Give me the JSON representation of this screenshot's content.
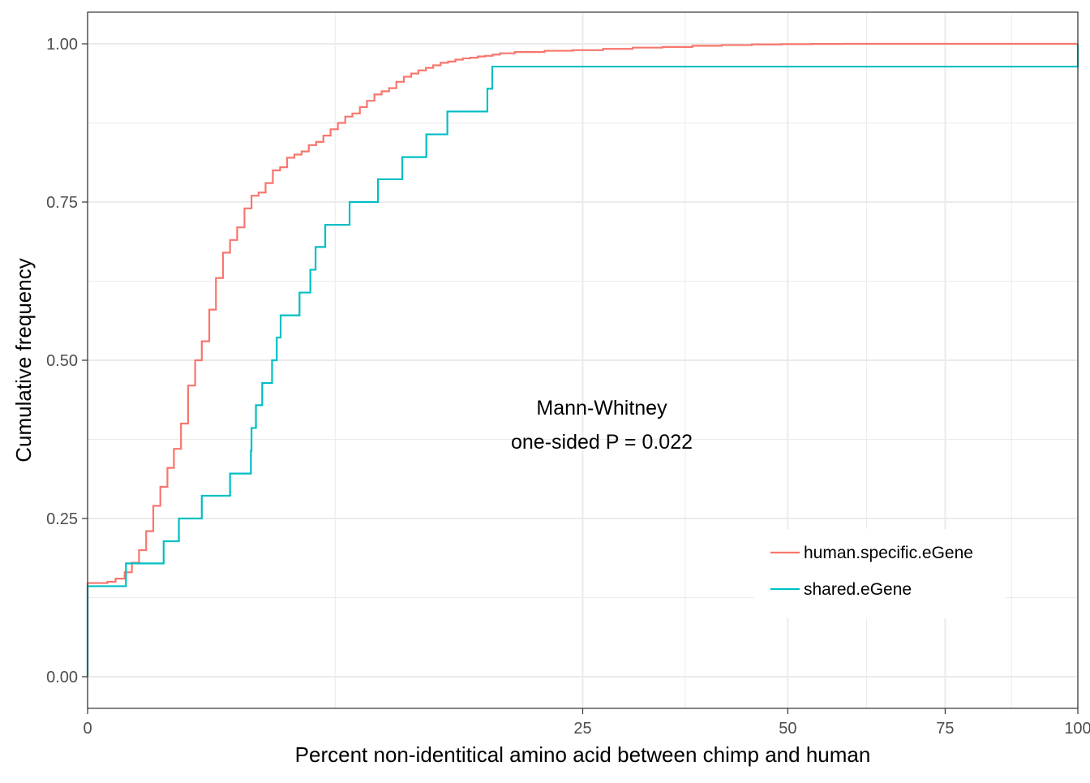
{
  "chart_data": {
    "type": "line",
    "step": true,
    "xlabel": "Percent non-identitical amino acid between chimp and human",
    "ylabel": "Cumulative frequency",
    "x_scale": "sqrt",
    "xlim": [
      0,
      100
    ],
    "ylim": [
      -0.05,
      1.05
    ],
    "x_ticks": [
      0,
      25,
      50,
      75,
      100
    ],
    "x_tick_labels": [
      "0",
      "25",
      "50",
      "75",
      "100"
    ],
    "y_ticks": [
      0,
      0.25,
      0.5,
      0.75,
      1.0
    ],
    "y_tick_labels": [
      "0.00",
      "0.25",
      "0.50",
      "0.75",
      "1.00"
    ],
    "grid": true,
    "legend_position": "bottom-right",
    "annotation": [
      "Mann-Whitney",
      "one-sided P = 0.022"
    ],
    "colors": {
      "human": "#F8766D",
      "shared": "#00BFC4",
      "axis": "#333333",
      "grid": "#EBEBEB"
    },
    "series": [
      {
        "name": "human.specific.eGene",
        "color": "#F8766D",
        "x": [
          0,
          0.04,
          0.08,
          0.14,
          0.2,
          0.27,
          0.35,
          0.44,
          0.54,
          0.65,
          0.76,
          0.89,
          1.03,
          1.18,
          1.33,
          1.51,
          1.68,
          1.87,
          2.07,
          2.28,
          2.51,
          2.74,
          2.98,
          3.23,
          3.5,
          3.78,
          4.06,
          4.36,
          4.67,
          4.99,
          5.33,
          5.67,
          6.02,
          6.39,
          6.77,
          7.15,
          7.56,
          7.96,
          8.39,
          8.82,
          9.27,
          9.72,
          10.2,
          10.68,
          11.16,
          11.67,
          12.18,
          12.71,
          13.25,
          13.79,
          14.36,
          14.93,
          15.52,
          16.11,
          16.73,
          17.34,
          18.6,
          21.3,
          24.0,
          27.1,
          30.3,
          33.7,
          37.3,
          41.0,
          45.0,
          49.1,
          53.5,
          58.0,
          62.6,
          100
        ],
        "y": [
          0.148,
          0.15,
          0.155,
          0.165,
          0.18,
          0.2,
          0.23,
          0.27,
          0.3,
          0.33,
          0.36,
          0.4,
          0.46,
          0.5,
          0.53,
          0.58,
          0.63,
          0.67,
          0.69,
          0.71,
          0.74,
          0.76,
          0.765,
          0.78,
          0.8,
          0.805,
          0.82,
          0.825,
          0.83,
          0.84,
          0.845,
          0.855,
          0.865,
          0.875,
          0.885,
          0.89,
          0.9,
          0.91,
          0.92,
          0.925,
          0.93,
          0.94,
          0.948,
          0.953,
          0.958,
          0.962,
          0.966,
          0.97,
          0.972,
          0.975,
          0.977,
          0.978,
          0.98,
          0.981,
          0.983,
          0.985,
          0.987,
          0.989,
          0.99,
          0.992,
          0.994,
          0.995,
          0.997,
          0.998,
          0.999,
          0.9995,
          0.9998,
          1.0,
          1.0,
          1.0
        ]
      },
      {
        "name": "shared.eGene",
        "color": "#00BFC4",
        "x": [
          0,
          0.15,
          0.59,
          0.85,
          1.33,
          2.07,
          2.72,
          2.74,
          2.89,
          3.11,
          3.47,
          3.65,
          3.8,
          4.58,
          5.06,
          5.3,
          5.76,
          7.0,
          8.6,
          10.1,
          11.7,
          13.2,
          16.3,
          16.7,
          100
        ],
        "y": [
          0.143,
          0.179,
          0.214,
          0.25,
          0.286,
          0.321,
          0.357,
          0.393,
          0.429,
          0.464,
          0.5,
          0.536,
          0.571,
          0.607,
          0.643,
          0.679,
          0.714,
          0.75,
          0.786,
          0.821,
          0.857,
          0.893,
          0.929,
          0.964,
          1.0
        ]
      }
    ]
  }
}
